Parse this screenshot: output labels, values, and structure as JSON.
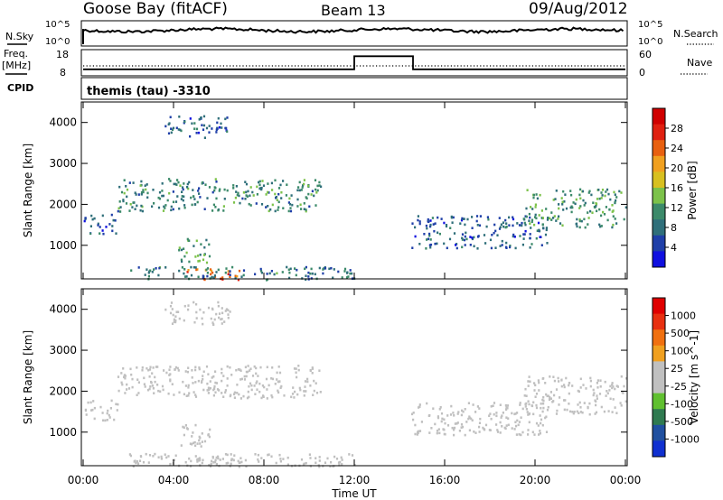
{
  "header": {
    "station": "Goose Bay (fitACF)",
    "beam": "Beam 13",
    "date": "09/Aug/2012"
  },
  "noise_panel": {
    "left_label": "N.Sky",
    "right_label": "N.Search",
    "ticks": [
      "10^5",
      "10^0"
    ]
  },
  "freq_panel": {
    "left_label_top": "Freq.",
    "left_label_bottom": "[MHz]",
    "left_ticks": [
      "18",
      "8"
    ],
    "right_label": "Nave",
    "right_ticks": [
      "60",
      "0"
    ]
  },
  "cpid": {
    "label": "CPID",
    "program": "themis (tau)  -3310"
  },
  "x_axis": {
    "label": "Time UT",
    "ticks": [
      "00:00",
      "04:00",
      "08:00",
      "12:00",
      "16:00",
      "20:00",
      "00:00"
    ]
  },
  "power_colorbar": {
    "label": "Power [dB]",
    "ticks": [
      "4",
      "8",
      "12",
      "16",
      "20",
      "24",
      "28"
    ],
    "colors": [
      "#1010e0",
      "#1f3fa8",
      "#2f6f7a",
      "#3c8a6a",
      "#7cc24a",
      "#d8c020",
      "#f0a020",
      "#e86010",
      "#e02010",
      "#d00000"
    ]
  },
  "velocity_colorbar": {
    "label": "Velocity [m s^-1]",
    "ticks": [
      "1000",
      "500",
      "100",
      "25",
      "-25",
      "-100",
      "-500",
      "-1000"
    ],
    "colors": [
      "#1030d0",
      "#2050a0",
      "#2f7a50",
      "#60c030",
      "#c0c0c0",
      "#c0c0c0",
      "#f0a020",
      "#f07010",
      "#e83010",
      "#e00000"
    ]
  },
  "chart_data": [
    {
      "type": "line",
      "name": "noise",
      "x_range_hours": [
        0,
        24
      ],
      "ylabel": "N.Sky",
      "level": "high, roughly flat across the day"
    },
    {
      "type": "line",
      "name": "frequency",
      "x_range_hours": [
        0,
        24
      ],
      "ylim_left": [
        8,
        18
      ],
      "ylim_right": [
        0,
        60
      ],
      "segments": [
        {
          "x": [
            0,
            12
          ],
          "freq_mhz": 10.5
        },
        {
          "x": [
            12,
            14.6
          ],
          "freq_mhz": 15.5
        },
        {
          "x": [
            14.6,
            24
          ],
          "freq_mhz": 10.5
        }
      ]
    },
    {
      "type": "heatmap",
      "name": "power",
      "xlabel": "Time UT",
      "ylabel": "Slant Range [km]",
      "x_range_hours": [
        0,
        24
      ],
      "ylim_km": [
        180,
        4500
      ],
      "y_ticks": [
        1000,
        2000,
        3000,
        4000
      ],
      "scatter_regions": [
        {
          "x": [
            1.5,
            10.5
          ],
          "range_km": [
            1850,
            2650
          ],
          "dB": 10
        },
        {
          "x": [
            3.6,
            6.5
          ],
          "range_km": [
            3650,
            4200
          ],
          "dB": 7
        },
        {
          "x": [
            4.2,
            5.6
          ],
          "range_km": [
            600,
            1200
          ],
          "dB": 12
        },
        {
          "x": [
            0.0,
            1.5
          ],
          "range_km": [
            1300,
            1800
          ],
          "dB": 7
        },
        {
          "x": [
            14.5,
            20.5
          ],
          "range_km": [
            950,
            1750
          ],
          "dB": 7
        },
        {
          "x": [
            19.5,
            24.0
          ],
          "range_km": [
            1450,
            2400
          ],
          "dB": 11
        },
        {
          "x": [
            4.5,
            7.0
          ],
          "range_km": [
            180,
            450
          ],
          "dB": 24
        },
        {
          "x": [
            2.0,
            12.0
          ],
          "range_km": [
            180,
            500
          ],
          "dB": 9
        }
      ]
    },
    {
      "type": "heatmap",
      "name": "velocity",
      "xlabel": "Time UT",
      "ylabel": "Slant Range [km]",
      "x_range_hours": [
        0,
        24
      ],
      "ylim_km": [
        180,
        4500
      ],
      "y_ticks": [
        1000,
        2000,
        3000,
        4000
      ],
      "scatter_regions": [
        {
          "x": [
            1.5,
            10.5
          ],
          "range_km": [
            1850,
            2650
          ],
          "velocity": 0
        },
        {
          "x": [
            3.6,
            6.5
          ],
          "range_km": [
            3650,
            4200
          ],
          "velocity": 0
        },
        {
          "x": [
            4.2,
            5.6
          ],
          "range_km": [
            600,
            1200
          ],
          "velocity": 0
        },
        {
          "x": [
            0.0,
            1.5
          ],
          "range_km": [
            1300,
            1800
          ],
          "velocity": 0
        },
        {
          "x": [
            14.5,
            20.5
          ],
          "range_km": [
            950,
            1750
          ],
          "velocity": 0
        },
        {
          "x": [
            19.5,
            24.0
          ],
          "range_km": [
            1450,
            2400
          ],
          "velocity": 0
        },
        {
          "x": [
            4.5,
            7.0
          ],
          "range_km": [
            180,
            450
          ],
          "velocity": 60
        },
        {
          "x": [
            2.0,
            12.0
          ],
          "range_km": [
            180,
            500
          ],
          "velocity": -80
        }
      ]
    }
  ]
}
